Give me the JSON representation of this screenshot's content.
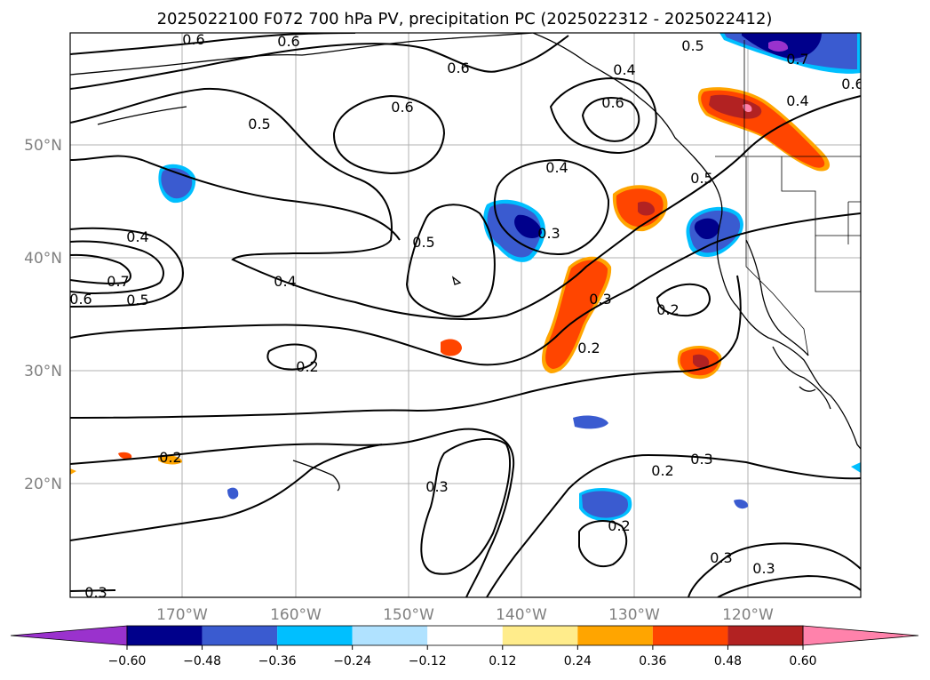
{
  "title": "2025022100 F072 700 hPa PV, precipitation PC (2025022312 - 2025022412)",
  "lon_labels": [
    "170°W",
    "160°W",
    "150°W",
    "140°W",
    "130°W",
    "120°W"
  ],
  "lat_labels": [
    "50°N",
    "40°N",
    "30°N",
    "20°N"
  ],
  "colorbar": {
    "ticks": [
      "−0.60",
      "−0.48",
      "−0.36",
      "−0.24",
      "−0.12",
      "0.12",
      "0.24",
      "0.36",
      "0.48",
      "0.60"
    ],
    "colors": [
      "#9a32cd",
      "#00008b",
      "#3a5bd0",
      "#00bfff",
      "#b0e2ff",
      "#ffffff",
      "#ffec8b",
      "#ffa500",
      "#ff4500",
      "#b22222",
      "#ff82ab"
    ]
  },
  "contour_labels": [
    "0.6",
    "0.6",
    "0.6",
    "0.6",
    "0.5",
    "0.4",
    "0.6",
    "0.5",
    "0.7",
    "0.6",
    "0.4",
    "0.4",
    "0.3",
    "0.5",
    "0.5",
    "0.4",
    "0.7",
    "0.6",
    "0.5",
    "0.4",
    "0.2",
    "0.3",
    "0.2",
    "0.2",
    "0.3",
    "0.2",
    "0.3",
    "0.2",
    "0.2",
    "0.3",
    "0.3"
  ]
}
